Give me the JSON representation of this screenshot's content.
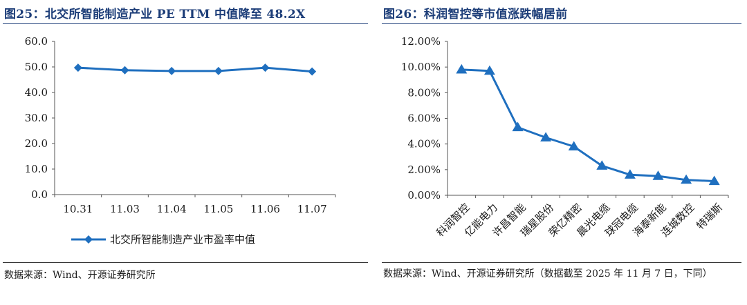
{
  "panels": {
    "left": {
      "title": "图25：北交所智能制造产业 PE TTM 中值降至 48.2X",
      "source": "数据来源：Wind、开源证券研究所"
    },
    "right": {
      "title": "图26：科润智控等市值涨跌幅居前",
      "source": "数据来源：Wind、开源证券研究所（数据截至 2025 年 11 月 7 日，下同）"
    }
  },
  "chart_data": [
    {
      "type": "line",
      "title": "图25：北交所智能制造产业 PE TTM 中值降至 48.2X",
      "categories": [
        "10.31",
        "11.03",
        "11.04",
        "11.05",
        "11.06",
        "11.07"
      ],
      "series": [
        {
          "name": "北交所智能制造产业市盈率中值",
          "values": [
            49.7,
            48.7,
            48.4,
            48.4,
            49.7,
            48.2
          ]
        }
      ],
      "ylim": [
        0,
        60
      ],
      "yticks": [
        "0.0",
        "10.0",
        "20.0",
        "30.0",
        "40.0",
        "50.0",
        "60.0"
      ],
      "marker": "diamond",
      "color": "#1f6fbf",
      "legend": "bottom",
      "grid": false
    },
    {
      "type": "line",
      "title": "图26：科润智控等市值涨跌幅居前",
      "categories": [
        "科润智控",
        "亿能电力",
        "许昌智能",
        "瑞星股份",
        "荣亿精密",
        "晨光电缆",
        "球冠电缆",
        "海泰新能",
        "连城数控",
        "特瑞斯"
      ],
      "series": [
        {
          "values": [
            9.8,
            9.7,
            5.3,
            4.5,
            3.8,
            2.3,
            1.6,
            1.5,
            1.2,
            1.1
          ]
        }
      ],
      "ylim": [
        0,
        12
      ],
      "yticks": [
        "0.00%",
        "2.00%",
        "4.00%",
        "6.00%",
        "8.00%",
        "10.00%",
        "12.00%"
      ],
      "marker": "triangle",
      "color": "#1f6fbf",
      "grid": false
    }
  ]
}
